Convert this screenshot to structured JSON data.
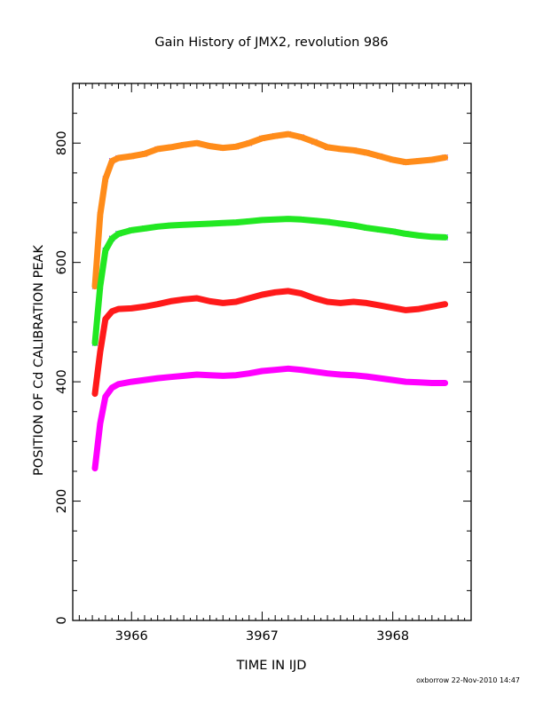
{
  "chart_data": {
    "type": "scatter",
    "title": "Gain History of JMX2, revolution 986",
    "xlabel": "TIME IN IJD",
    "ylabel": "POSITION OF Cd CALIBRATION PEAK",
    "xlim": [
      3965.55,
      3968.6
    ],
    "ylim": [
      0,
      900
    ],
    "x_ticks": [
      3966,
      3967,
      3968
    ],
    "x_tick_labels": [
      "3966",
      "3967",
      "3968"
    ],
    "y_ticks": [
      0,
      200,
      400,
      600,
      800
    ],
    "y_tick_labels": [
      "0",
      "200",
      "400",
      "600",
      "800"
    ],
    "grid": false,
    "footer": "oxborrow 22-Nov-2010 14:47",
    "series": [
      {
        "marker": "x",
        "color": "#8a2be2",
        "fit_color": "#ff8c1a",
        "x": [
          3965.72,
          3965.76,
          3965.8,
          3965.85,
          3965.9,
          3966.0,
          3966.1,
          3966.2,
          3966.3,
          3966.4,
          3966.5,
          3966.6,
          3966.7,
          3966.8,
          3966.9,
          3967.0,
          3967.1,
          3967.2,
          3967.3,
          3967.4,
          3967.5,
          3967.6,
          3967.7,
          3967.8,
          3967.9,
          3968.0,
          3968.1,
          3968.2,
          3968.3,
          3968.4
        ],
        "y": [
          560,
          680,
          740,
          770,
          775,
          778,
          782,
          790,
          793,
          797,
          800,
          795,
          792,
          794,
          800,
          808,
          812,
          815,
          810,
          802,
          793,
          790,
          788,
          784,
          778,
          772,
          768,
          770,
          772,
          776
        ]
      },
      {
        "marker": "x",
        "color": "#1a1aff",
        "fit_color": "#22e822",
        "x": [
          3965.72,
          3965.76,
          3965.8,
          3965.85,
          3965.9,
          3966.0,
          3966.1,
          3966.2,
          3966.3,
          3966.4,
          3966.5,
          3966.6,
          3966.7,
          3966.8,
          3966.9,
          3967.0,
          3967.1,
          3967.2,
          3967.3,
          3967.4,
          3967.5,
          3967.6,
          3967.7,
          3967.8,
          3967.9,
          3968.0,
          3968.1,
          3968.2,
          3968.3,
          3968.4
        ],
        "y": [
          465,
          560,
          620,
          640,
          648,
          654,
          657,
          660,
          662,
          663,
          664,
          665,
          666,
          667,
          669,
          671,
          672,
          673,
          672,
          670,
          668,
          665,
          662,
          658,
          655,
          652,
          648,
          645,
          643,
          642
        ]
      },
      {
        "marker": "+",
        "color": "#000000",
        "fit_color": "#ff1a1a",
        "x": [
          3965.72,
          3965.76,
          3965.8,
          3965.85,
          3965.9,
          3966.0,
          3966.1,
          3966.2,
          3966.3,
          3966.4,
          3966.5,
          3966.6,
          3966.7,
          3966.8,
          3966.9,
          3967.0,
          3967.1,
          3967.2,
          3967.3,
          3967.4,
          3967.5,
          3967.6,
          3967.7,
          3967.8,
          3967.9,
          3968.0,
          3968.1,
          3968.2,
          3968.3,
          3968.4
        ],
        "y": [
          380,
          450,
          505,
          518,
          522,
          523,
          526,
          530,
          535,
          538,
          540,
          535,
          532,
          534,
          540,
          546,
          550,
          552,
          548,
          540,
          534,
          532,
          534,
          532,
          528,
          524,
          520,
          522,
          526,
          530
        ]
      },
      {
        "marker": "+",
        "color": "#ffff00",
        "fit_color": "#ff00ff",
        "x": [
          3965.72,
          3965.76,
          3965.8,
          3965.85,
          3965.9,
          3966.0,
          3966.1,
          3966.2,
          3966.3,
          3966.4,
          3966.5,
          3966.6,
          3966.7,
          3966.8,
          3966.9,
          3967.0,
          3967.1,
          3967.2,
          3967.3,
          3967.4,
          3967.5,
          3967.6,
          3967.7,
          3967.8,
          3967.9,
          3968.0,
          3968.1,
          3968.2,
          3968.3,
          3968.4
        ],
        "y": [
          255,
          330,
          375,
          390,
          396,
          400,
          403,
          406,
          408,
          410,
          412,
          411,
          410,
          411,
          414,
          418,
          420,
          422,
          420,
          417,
          414,
          412,
          411,
          409,
          406,
          403,
          400,
          399,
          398,
          398
        ]
      }
    ]
  }
}
